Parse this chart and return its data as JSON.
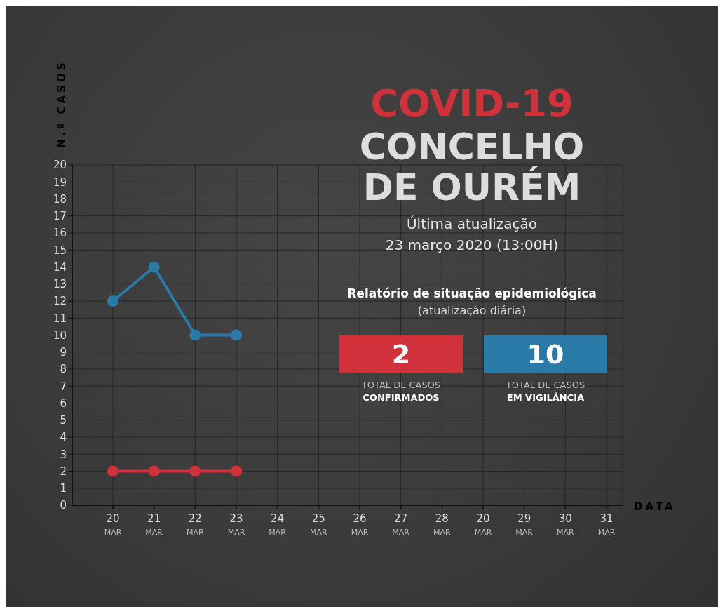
{
  "chart_data": {
    "type": "line",
    "title": "COVID-19",
    "subtitle": "CONCELHO DE OURÉM",
    "ylabel": "N.º CASOS",
    "xlabel": "DATA",
    "categories": [
      "20 MAR",
      "21 MAR",
      "22 MAR",
      "23 MAR",
      "24 MAR",
      "25 MAR",
      "26 MAR",
      "27 MAR",
      "28 MAR",
      "20 MAR",
      "29 MAR",
      "30 MAR",
      "31 MAR"
    ],
    "series": [
      {
        "color": "#d0313a",
        "values": [
          2,
          2,
          2,
          2,
          null,
          null,
          null,
          null,
          null,
          null,
          null,
          null,
          null
        ]
      },
      {
        "color": "#2a7aa8",
        "values": [
          12,
          14,
          10,
          10,
          null,
          null,
          null,
          null,
          null,
          null,
          null,
          null,
          null
        ]
      }
    ],
    "ylim": [
      0,
      20
    ],
    "yticks": [
      0,
      1,
      2,
      3,
      4,
      5,
      6,
      7,
      8,
      9,
      10,
      11,
      12,
      13,
      14,
      15,
      16,
      17,
      18,
      19,
      20
    ],
    "grid": true,
    "marker": "circle",
    "line_style": "solid",
    "annotations": [
      "Última atualização",
      "23 março 2020 (13:00H)",
      "Relatório de situação epidemiológica",
      "(atualização diária)",
      "2",
      "TOTAL DE CASOS",
      "CONFIRMADOS",
      "10",
      "TOTAL DE CASOS",
      "EM VIGILÂNCIA"
    ]
  }
}
